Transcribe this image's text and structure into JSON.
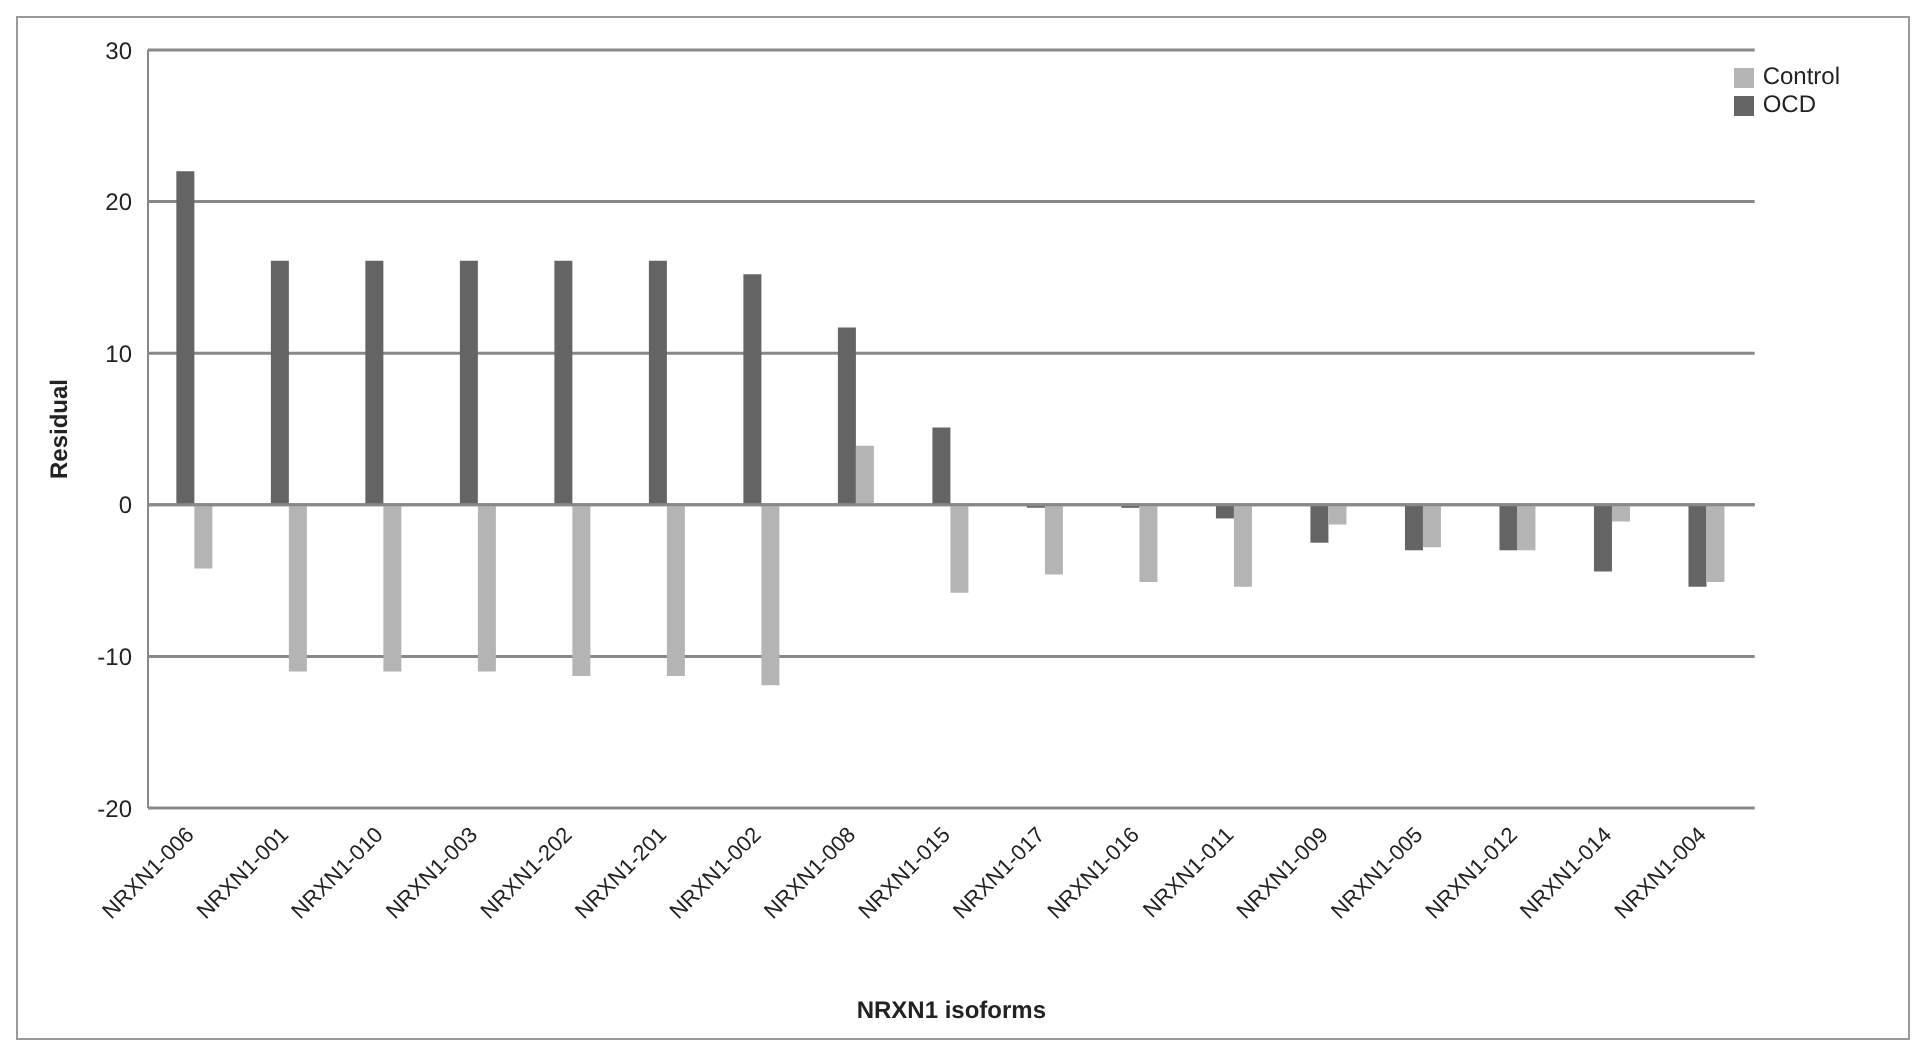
{
  "chart_data": {
    "type": "bar",
    "xlabel": "NRXN1 isoforms",
    "ylabel": "Residual",
    "categories": [
      "NRXN1-006",
      "NRXN1-001",
      "NRXN1-010",
      "NRXN1-003",
      "NRXN1-202",
      "NRXN1-201",
      "NRXN1-002",
      "NRXN1-008",
      "NRXN1-015",
      "NRXN1-017",
      "NRXN1-016",
      "NRXN1-011",
      "NRXN1-009",
      "NRXN1-005",
      "NRXN1-012",
      "NRXN1-014",
      "NRXN1-004"
    ],
    "series": [
      {
        "name": "OCD",
        "color": "#646464",
        "values": [
          22.0,
          16.1,
          16.1,
          16.1,
          16.1,
          16.1,
          15.2,
          11.7,
          5.1,
          -0.2,
          -0.2,
          -0.9,
          -2.5,
          -3.0,
          -3.0,
          -4.4,
          -5.4
        ]
      },
      {
        "name": "Control",
        "color": "#b4b4b4",
        "values": [
          -4.2,
          -11.0,
          -11.0,
          -11.0,
          -11.3,
          -11.3,
          -11.9,
          3.9,
          -5.8,
          -4.6,
          -5.1,
          -5.4,
          -1.3,
          -2.8,
          -3.0,
          -1.1,
          -5.1
        ]
      }
    ],
    "ylim": [
      -20,
      30
    ],
    "yticks": [
      -20,
      -10,
      0,
      10,
      20,
      30
    ],
    "grid": "y",
    "legend": "top right"
  }
}
